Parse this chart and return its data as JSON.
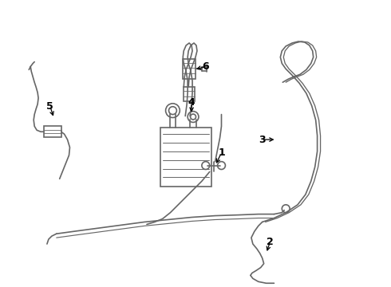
{
  "bg_color": "#ffffff",
  "line_color": "#666666",
  "label_color": "#000000",
  "lw": 1.2,
  "fig_width": 4.9,
  "fig_height": 3.6,
  "dpi": 100
}
